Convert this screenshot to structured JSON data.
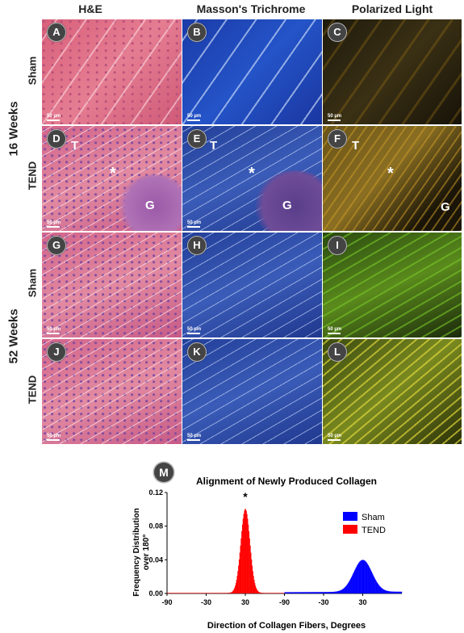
{
  "columns": [
    "H&E",
    "Masson's Trichrome",
    "Polarized Light"
  ],
  "groups": [
    "16 Weeks",
    "52 Weeks"
  ],
  "rows": [
    "Sham",
    "TEND",
    "Sham",
    "TEND"
  ],
  "panels": [
    "A",
    "B",
    "C",
    "D",
    "E",
    "F",
    "G",
    "H",
    "I",
    "J",
    "K",
    "L"
  ],
  "scale_bar": "50 µm",
  "overlays": {
    "t": "T",
    "g": "G",
    "star": "*"
  },
  "chart_badge": "M",
  "chart_data": {
    "type": "bar",
    "title": "Alignment of Newly Produced Collagen",
    "xlabel": "Direction of Collagen Fibers, Degrees",
    "ylabel": "Frequency Distribution over 180°",
    "ylim": [
      0,
      0.12
    ],
    "yticks": [
      "0.00",
      "0.04",
      "0.08",
      "0.12"
    ],
    "xticks": [
      "-90",
      "-30",
      "30",
      "-90",
      "-30",
      "30"
    ],
    "annotation": "*",
    "series": [
      {
        "name": "TEND",
        "color": "#ff0000",
        "range": [
          -90,
          90
        ],
        "peak_x": 30,
        "peak_y": 0.1,
        "sigma": 7
      },
      {
        "name": "Sham",
        "color": "#0000ff",
        "range": [
          -90,
          90
        ],
        "peak_x": 30,
        "peak_y": 0.038,
        "sigma": 14
      }
    ]
  }
}
